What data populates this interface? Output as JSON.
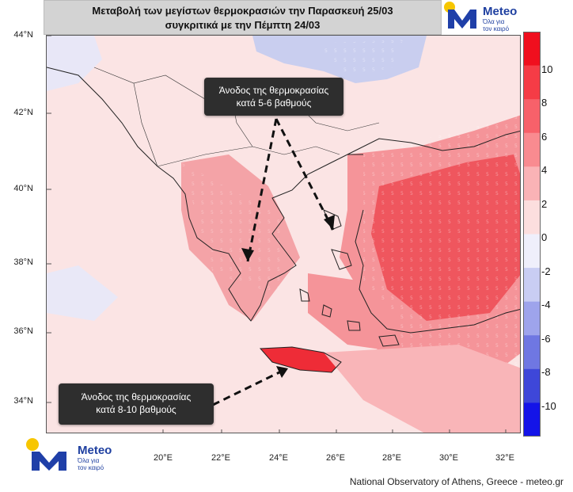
{
  "title": {
    "line1": "Μεταβολή των μεγίστων θερμοκρασιών την Παρασκευή 25/03",
    "line2": "συγκριτικά με την Πέμπτη 24/03"
  },
  "logo": {
    "brand": "Meteo",
    "tagline1": "Όλα για",
    "tagline2": "τον καιρό"
  },
  "axes": {
    "lat_labels": [
      "44°N",
      "42°N",
      "40°N",
      "38°N",
      "36°N",
      "34°N"
    ],
    "lon_labels": [
      "20°E",
      "22°E",
      "24°E",
      "26°E",
      "28°E",
      "30°E",
      "32°E"
    ]
  },
  "colorbar": {
    "labels": [
      "10",
      "8",
      "6",
      "4",
      "2",
      "0",
      "-2",
      "-4",
      "-6",
      "-8",
      "-10"
    ],
    "colors": [
      "#f00f1e",
      "#f53c46",
      "#f7616a",
      "#f98b90",
      "#fab3b6",
      "#fcdede",
      "#efeffb",
      "#c9cdf3",
      "#9ea4ec",
      "#6f77e2",
      "#3e47d9",
      "#1414e8"
    ]
  },
  "annotations": {
    "top_line1": "Άνοδος της θερμοκρασίας",
    "top_line2": "κατά 5-6 βαθμούς",
    "bottom_line1": "Άνοδος της θερμοκρασίας",
    "bottom_line2": "κατά 8-10 βαθμούς"
  },
  "footer": "National Observatory of Athens, Greece - meteo.gr",
  "colors": {
    "land_positive": "#f7a1a6",
    "strong_positive": "#ef3b45",
    "background": "#fdeaea",
    "cooling": "#c9ceef"
  }
}
